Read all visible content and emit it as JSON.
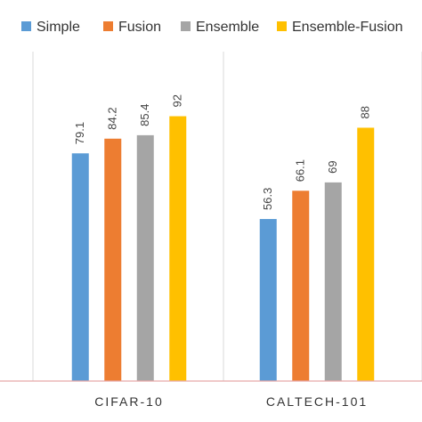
{
  "chart_data": {
    "type": "bar",
    "title": "",
    "xlabel": "",
    "ylabel": "",
    "categories": [
      "CIFAR-10",
      "CALTECH-101"
    ],
    "ylim": [
      0,
      120
    ],
    "grid": false,
    "legend_position": "top",
    "series": [
      {
        "name": "Simple",
        "values": [
          79.1,
          56.3
        ],
        "color": "#5B9BD5",
        "labels": [
          "79.1",
          "56.3"
        ]
      },
      {
        "name": "Fusion",
        "values": [
          84.2,
          66.1
        ],
        "color": "#ED7D31",
        "labels": [
          "84.2",
          "66.1"
        ]
      },
      {
        "name": "Ensemble",
        "values": [
          85.4,
          69
        ],
        "color": "#A5A5A5",
        "labels": [
          "85.4",
          "69"
        ]
      },
      {
        "name": "Ensemble-Fusion",
        "values": [
          92,
          88
        ],
        "color": "#FFC000",
        "labels": [
          "92",
          "88"
        ]
      }
    ],
    "colors": {
      "axis": "#D9D9D9",
      "bottom_line": "#E6A9A9",
      "text": "#333333"
    }
  }
}
